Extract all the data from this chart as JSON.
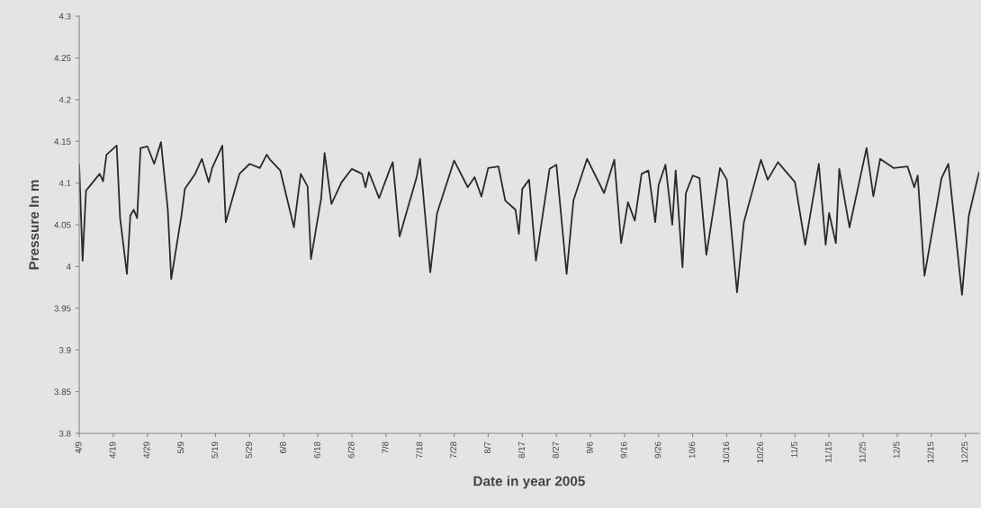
{
  "chart_data": {
    "type": "line",
    "xlabel": "Date in year 2005",
    "ylabel": "Pressure In m",
    "x": [
      "2005-04-09",
      "2005-04-10",
      "2005-04-11",
      "2005-04-12",
      "2005-04-15",
      "2005-04-16",
      "2005-04-17",
      "2005-04-20",
      "2005-04-21",
      "2005-04-23",
      "2005-04-24",
      "2005-04-25",
      "2005-04-26",
      "2005-04-27",
      "2005-04-29",
      "2005-05-01",
      "2005-05-03",
      "2005-05-05",
      "2005-05-06",
      "2005-05-09",
      "2005-05-10",
      "2005-05-13",
      "2005-05-15",
      "2005-05-17",
      "2005-05-18",
      "2005-05-21",
      "2005-05-22",
      "2005-05-24",
      "2005-05-26",
      "2005-05-29",
      "2005-06-01",
      "2005-06-03",
      "2005-06-04",
      "2005-06-07",
      "2005-06-11",
      "2005-06-13",
      "2005-06-15",
      "2005-06-16",
      "2005-06-19",
      "2005-06-20",
      "2005-06-22",
      "2005-06-25",
      "2005-06-28",
      "2005-07-01",
      "2005-07-02",
      "2005-07-03",
      "2005-07-06",
      "2005-07-09",
      "2005-07-10",
      "2005-07-12",
      "2005-07-17",
      "2005-07-18",
      "2005-07-21",
      "2005-07-23",
      "2005-07-28",
      "2005-08-01",
      "2005-08-03",
      "2005-08-05",
      "2005-08-07",
      "2005-08-10",
      "2005-08-12",
      "2005-08-15",
      "2005-08-16",
      "2005-08-17",
      "2005-08-19",
      "2005-08-21",
      "2005-08-25",
      "2005-08-27",
      "2005-08-30",
      "2005-09-01",
      "2005-09-05",
      "2005-09-10",
      "2005-09-13",
      "2005-09-15",
      "2005-09-17",
      "2005-09-19",
      "2005-09-21",
      "2005-09-23",
      "2005-09-25",
      "2005-09-26",
      "2005-09-28",
      "2005-09-30",
      "2005-10-01",
      "2005-10-03",
      "2005-10-04",
      "2005-10-06",
      "2005-10-08",
      "2005-10-10",
      "2005-10-14",
      "2005-10-16",
      "2005-10-19",
      "2005-10-21",
      "2005-10-26",
      "2005-10-28",
      "2005-10-31",
      "2005-11-05",
      "2005-11-08",
      "2005-11-12",
      "2005-11-14",
      "2005-11-15",
      "2005-11-17",
      "2005-11-18",
      "2005-11-21",
      "2005-11-26",
      "2005-11-28",
      "2005-11-30",
      "2005-12-04",
      "2005-12-08",
      "2005-12-10",
      "2005-12-11",
      "2005-12-13",
      "2005-12-18",
      "2005-12-20",
      "2005-12-24",
      "2005-12-26",
      "2005-12-29"
    ],
    "series": [
      {
        "color": "#2a2a2a",
        "values": [
          4.122,
          4.007,
          4.091,
          4.096,
          4.111,
          4.102,
          4.134,
          4.145,
          4.058,
          3.991,
          4.061,
          4.068,
          4.058,
          4.142,
          4.144,
          4.123,
          4.149,
          4.068,
          3.985,
          4.061,
          4.093,
          4.111,
          4.129,
          4.101,
          4.118,
          4.145,
          4.053,
          4.082,
          4.111,
          4.123,
          4.118,
          4.134,
          4.128,
          4.115,
          4.047,
          4.111,
          4.096,
          4.009,
          4.082,
          4.136,
          4.075,
          4.101,
          4.117,
          4.111,
          4.095,
          4.113,
          4.082,
          4.115,
          4.125,
          4.036,
          4.107,
          4.129,
          3.993,
          4.064,
          4.127,
          4.095,
          4.107,
          4.084,
          4.118,
          4.12,
          4.079,
          4.068,
          4.039,
          4.093,
          4.104,
          4.007,
          4.117,
          4.122,
          3.991,
          4.079,
          4.129,
          4.088,
          4.128,
          4.028,
          4.077,
          4.055,
          4.111,
          4.115,
          4.053,
          4.098,
          4.122,
          4.05,
          4.115,
          3.999,
          4.088,
          4.109,
          4.106,
          4.014,
          4.118,
          4.104,
          3.969,
          4.053,
          4.128,
          4.104,
          4.125,
          4.101,
          4.026,
          4.123,
          4.026,
          4.064,
          4.028,
          4.117,
          4.047,
          4.142,
          4.084,
          4.129,
          4.118,
          4.12,
          4.095,
          4.109,
          3.989,
          4.106,
          4.123,
          3.966,
          4.061,
          4.113
        ]
      }
    ],
    "xlim": [
      "2005-04-09",
      "2005-12-29"
    ],
    "xticks": [
      {
        "value": "2005-04-09",
        "label": "4/9"
      },
      {
        "value": "2005-04-19",
        "label": "4/19"
      },
      {
        "value": "2005-04-29",
        "label": "4/29"
      },
      {
        "value": "2005-05-09",
        "label": "5/9"
      },
      {
        "value": "2005-05-19",
        "label": "5/19"
      },
      {
        "value": "2005-05-29",
        "label": "5/29"
      },
      {
        "value": "2005-06-08",
        "label": "6/8"
      },
      {
        "value": "2005-06-18",
        "label": "6/18"
      },
      {
        "value": "2005-06-28",
        "label": "6/28"
      },
      {
        "value": "2005-07-08",
        "label": "7/8"
      },
      {
        "value": "2005-07-18",
        "label": "7/18"
      },
      {
        "value": "2005-07-28",
        "label": "7/28"
      },
      {
        "value": "2005-08-07",
        "label": "8/7"
      },
      {
        "value": "2005-08-17",
        "label": "8/17"
      },
      {
        "value": "2005-08-27",
        "label": "8/27"
      },
      {
        "value": "2005-09-06",
        "label": "9/6"
      },
      {
        "value": "2005-09-16",
        "label": "9/16"
      },
      {
        "value": "2005-09-26",
        "label": "9/26"
      },
      {
        "value": "2005-10-06",
        "label": "10/6"
      },
      {
        "value": "2005-10-16",
        "label": "10/16"
      },
      {
        "value": "2005-10-26",
        "label": "10/26"
      },
      {
        "value": "2005-11-05",
        "label": "11/5"
      },
      {
        "value": "2005-11-15",
        "label": "11/15"
      },
      {
        "value": "2005-11-25",
        "label": "11/25"
      },
      {
        "value": "2005-12-05",
        "label": "12/5"
      },
      {
        "value": "2005-12-15",
        "label": "12/15"
      },
      {
        "value": "2005-12-25",
        "label": "12/25"
      }
    ],
    "ylim": [
      3.8,
      4.3
    ],
    "yticks": [
      3.8,
      3.85,
      3.9,
      3.95,
      4,
      4.05,
      4.1,
      4.15,
      4.2,
      4.25,
      4.3
    ],
    "grid": false,
    "marker": "none",
    "line_style": "solid"
  }
}
